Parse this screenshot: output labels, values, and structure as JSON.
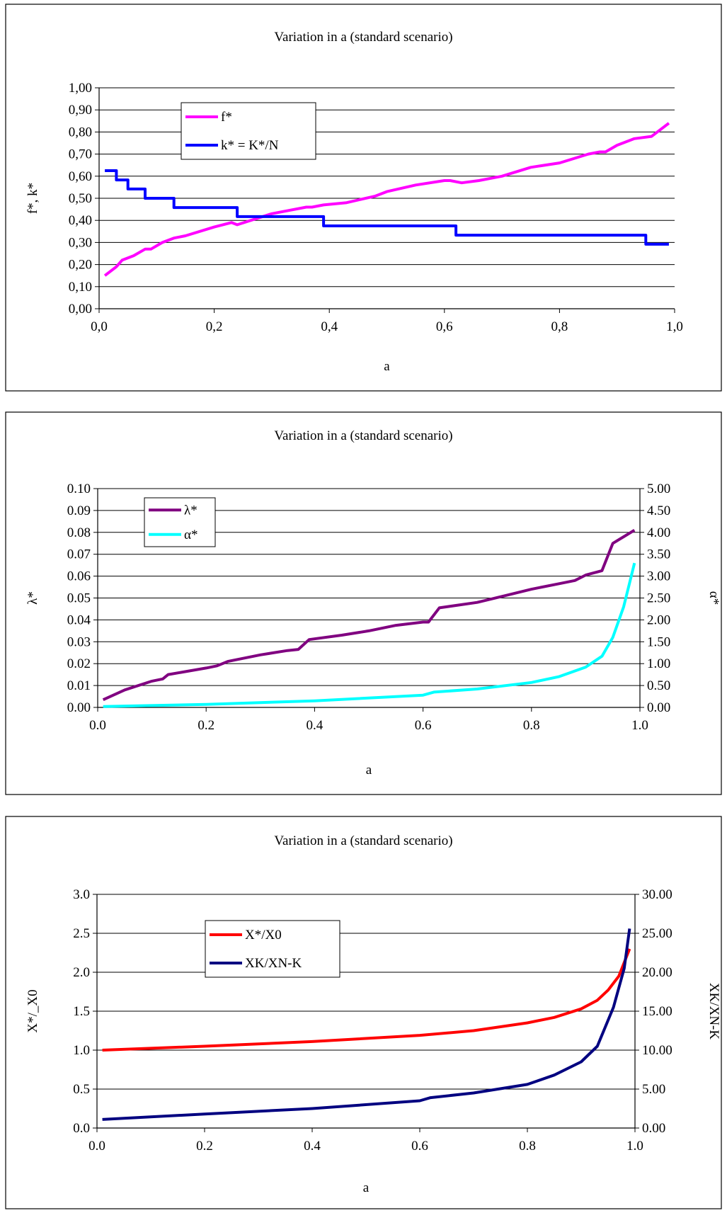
{
  "chart_data": [
    {
      "type": "line",
      "title": "Variation in a (standard scenario)",
      "xlabel": "a",
      "ylabel": "f*, k*",
      "xlim": [
        0,
        1
      ],
      "ylim": [
        0,
        1
      ],
      "xticks": [
        "0,0",
        "0,2",
        "0,4",
        "0,6",
        "0,8",
        "1,0"
      ],
      "yticks": [
        "0,00",
        "0,10",
        "0,20",
        "0,30",
        "0,40",
        "0,50",
        "0,60",
        "0,70",
        "0,80",
        "0,90",
        "1,00"
      ],
      "grid": true,
      "legend": "upper-left",
      "series": [
        {
          "name": "f*",
          "color": "#ff00ff",
          "axis": "left",
          "points": [
            [
              0.01,
              0.15
            ],
            [
              0.03,
              0.19
            ],
            [
              0.04,
              0.22
            ],
            [
              0.06,
              0.24
            ],
            [
              0.08,
              0.27
            ],
            [
              0.09,
              0.27
            ],
            [
              0.11,
              0.3
            ],
            [
              0.13,
              0.32
            ],
            [
              0.15,
              0.33
            ],
            [
              0.2,
              0.37
            ],
            [
              0.23,
              0.39
            ],
            [
              0.24,
              0.38
            ],
            [
              0.3,
              0.43
            ],
            [
              0.32,
              0.44
            ],
            [
              0.36,
              0.46
            ],
            [
              0.37,
              0.46
            ],
            [
              0.39,
              0.47
            ],
            [
              0.43,
              0.48
            ],
            [
              0.48,
              0.51
            ],
            [
              0.5,
              0.53
            ],
            [
              0.55,
              0.56
            ],
            [
              0.6,
              0.58
            ],
            [
              0.61,
              0.58
            ],
            [
              0.63,
              0.57
            ],
            [
              0.66,
              0.58
            ],
            [
              0.7,
              0.6
            ],
            [
              0.75,
              0.64
            ],
            [
              0.8,
              0.66
            ],
            [
              0.85,
              0.7
            ],
            [
              0.87,
              0.71
            ],
            [
              0.88,
              0.71
            ],
            [
              0.9,
              0.74
            ],
            [
              0.93,
              0.77
            ],
            [
              0.96,
              0.78
            ],
            [
              0.99,
              0.84
            ]
          ]
        },
        {
          "name": "k* = K*/N",
          "color": "#0000ff",
          "axis": "left",
          "step": true,
          "points": [
            [
              0.01,
              0.625
            ],
            [
              0.03,
              0.583
            ],
            [
              0.05,
              0.542
            ],
            [
              0.08,
              0.5
            ],
            [
              0.13,
              0.458
            ],
            [
              0.24,
              0.417
            ],
            [
              0.39,
              0.375
            ],
            [
              0.62,
              0.333
            ],
            [
              0.95,
              0.292
            ],
            [
              0.99,
              0.292
            ]
          ]
        }
      ]
    },
    {
      "type": "line",
      "title": "Variation in a (standard scenario)",
      "xlabel": "a",
      "ylabel": "λ*",
      "y2label": "α*",
      "xlim": [
        0,
        1
      ],
      "ylim": [
        0,
        0.1
      ],
      "y2lim": [
        0,
        5
      ],
      "xticks": [
        "0.0",
        "0.2",
        "0.4",
        "0.6",
        "0.8",
        "1.0"
      ],
      "yticks": [
        "0.00",
        "0.01",
        "0.02",
        "0.03",
        "0.04",
        "0.05",
        "0.06",
        "0.07",
        "0.08",
        "0.09",
        "0.10"
      ],
      "y2ticks": [
        "0.00",
        "0.50",
        "1.00",
        "1.50",
        "2.00",
        "2.50",
        "3.00",
        "3.50",
        "4.00",
        "4.50",
        "5.00"
      ],
      "grid": true,
      "legend": "upper-left",
      "series": [
        {
          "name": "λ*",
          "color": "#800080",
          "axis": "left",
          "points": [
            [
              0.01,
              0.0035
            ],
            [
              0.05,
              0.008
            ],
            [
              0.1,
              0.012
            ],
            [
              0.12,
              0.013
            ],
            [
              0.13,
              0.015
            ],
            [
              0.2,
              0.018
            ],
            [
              0.22,
              0.019
            ],
            [
              0.24,
              0.021
            ],
            [
              0.3,
              0.024
            ],
            [
              0.35,
              0.026
            ],
            [
              0.37,
              0.0265
            ],
            [
              0.39,
              0.031
            ],
            [
              0.45,
              0.033
            ],
            [
              0.5,
              0.035
            ],
            [
              0.55,
              0.0375
            ],
            [
              0.6,
              0.039
            ],
            [
              0.61,
              0.039
            ],
            [
              0.63,
              0.0455
            ],
            [
              0.7,
              0.048
            ],
            [
              0.75,
              0.051
            ],
            [
              0.8,
              0.054
            ],
            [
              0.85,
              0.0565
            ],
            [
              0.88,
              0.058
            ],
            [
              0.9,
              0.0605
            ],
            [
              0.93,
              0.0625
            ],
            [
              0.95,
              0.075
            ],
            [
              0.97,
              0.078
            ],
            [
              0.99,
              0.081
            ]
          ]
        },
        {
          "name": "α*",
          "color": "#00ffff",
          "axis": "right",
          "points": [
            [
              0.01,
              0.02
            ],
            [
              0.2,
              0.07
            ],
            [
              0.4,
              0.15
            ],
            [
              0.6,
              0.28
            ],
            [
              0.62,
              0.35
            ],
            [
              0.7,
              0.42
            ],
            [
              0.8,
              0.57
            ],
            [
              0.85,
              0.7
            ],
            [
              0.9,
              0.92
            ],
            [
              0.93,
              1.17
            ],
            [
              0.95,
              1.6
            ],
            [
              0.97,
              2.3
            ],
            [
              0.98,
              2.8
            ],
            [
              0.99,
              3.3
            ]
          ]
        }
      ]
    },
    {
      "type": "line",
      "title": "Variation in a (standard scenario)",
      "xlabel": "a",
      "ylabel": "X*/_X0",
      "y2label": "XK/XN-K",
      "xlim": [
        0,
        1
      ],
      "ylim": [
        0,
        3
      ],
      "y2lim": [
        0,
        30
      ],
      "xticks": [
        "0.0",
        "0.2",
        "0.4",
        "0.6",
        "0.8",
        "1.0"
      ],
      "yticks": [
        "0.0",
        "0.5",
        "1.0",
        "1.5",
        "2.0",
        "2.5",
        "3.0"
      ],
      "y2ticks": [
        "0.00",
        "5.00",
        "10.00",
        "15.00",
        "20.00",
        "25.00",
        "30.00"
      ],
      "grid": true,
      "legend": "upper-left",
      "series": [
        {
          "name": "X*/X0",
          "color": "#ff0000",
          "axis": "left",
          "points": [
            [
              0.01,
              1.0
            ],
            [
              0.2,
              1.05
            ],
            [
              0.4,
              1.11
            ],
            [
              0.6,
              1.19
            ],
            [
              0.7,
              1.25
            ],
            [
              0.8,
              1.35
            ],
            [
              0.85,
              1.42
            ],
            [
              0.9,
              1.53
            ],
            [
              0.93,
              1.64
            ],
            [
              0.95,
              1.77
            ],
            [
              0.97,
              1.95
            ],
            [
              0.99,
              2.3
            ]
          ]
        },
        {
          "name": "XK/XN-K",
          "color": "#000080",
          "axis": "right",
          "points": [
            [
              0.01,
              1.1
            ],
            [
              0.2,
              1.8
            ],
            [
              0.4,
              2.5
            ],
            [
              0.6,
              3.5
            ],
            [
              0.62,
              3.9
            ],
            [
              0.7,
              4.5
            ],
            [
              0.8,
              5.6
            ],
            [
              0.85,
              6.8
            ],
            [
              0.9,
              8.5
            ],
            [
              0.93,
              10.5
            ],
            [
              0.96,
              15.5
            ],
            [
              0.98,
              20.5
            ],
            [
              0.99,
              25.6
            ]
          ]
        }
      ]
    }
  ]
}
